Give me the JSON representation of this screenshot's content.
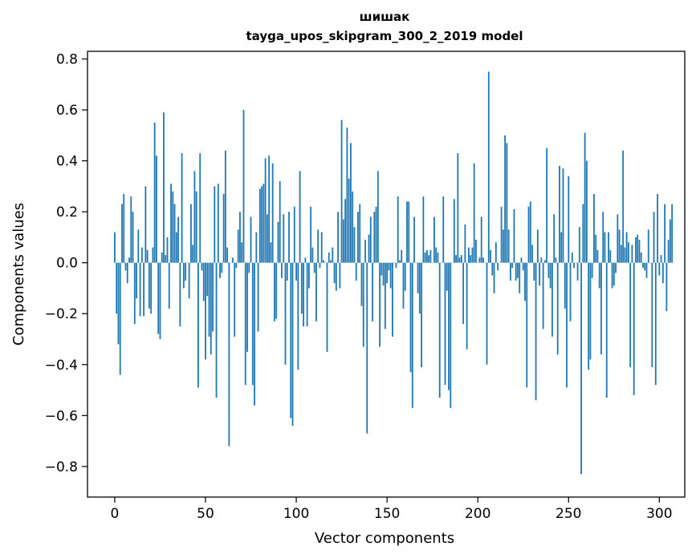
{
  "chart_data": {
    "type": "bar",
    "title_line1": "шишак",
    "title_line2": "tayga_upos_skipgram_300_2_2019 model",
    "xlabel": "Vector components",
    "ylabel": "Components values",
    "xlim": [
      -15,
      314
    ],
    "ylim": [
      -0.92,
      0.83
    ],
    "x_ticks": [
      0,
      50,
      100,
      150,
      200,
      250,
      300
    ],
    "y_ticks": [
      -0.8,
      -0.6,
      -0.4,
      -0.2,
      0.0,
      0.2,
      0.4,
      0.6,
      0.8
    ],
    "x_tick_labels": [
      "0",
      "50",
      "100",
      "150",
      "200",
      "250",
      "300"
    ],
    "y_tick_labels": [
      "−0.8",
      "−0.6",
      "−0.4",
      "−0.2",
      "0.0",
      "0.2",
      "0.4",
      "0.6",
      "0.8"
    ],
    "bar_color": "#1f77b4",
    "grid": false,
    "values": [
      0.12,
      -0.2,
      -0.32,
      -0.44,
      0.23,
      0.27,
      -0.03,
      -0.08,
      0.02,
      0.26,
      0.2,
      -0.24,
      -0.14,
      0.13,
      -0.21,
      0.06,
      -0.21,
      0.3,
      0.05,
      -0.18,
      -0.2,
      0.06,
      0.55,
      0.42,
      -0.28,
      -0.3,
      0.04,
      0.59,
      0.03,
      0.1,
      -0.18,
      0.31,
      0.28,
      0.23,
      0.12,
      0.18,
      -0.25,
      0.43,
      -0.1,
      -0.07,
      0.0,
      -0.14,
      0.23,
      0.07,
      0.36,
      0.28,
      -0.49,
      0.43,
      -0.03,
      -0.15,
      -0.38,
      -0.13,
      -0.29,
      -0.36,
      -0.27,
      0.3,
      -0.53,
      0.31,
      -0.06,
      -0.04,
      0.27,
      0.44,
      0.06,
      -0.72,
      0.0,
      0.02,
      -0.29,
      -0.02,
      0.13,
      0.2,
      0.08,
      0.6,
      -0.48,
      -0.35,
      -0.04,
      0.18,
      -0.48,
      -0.56,
      0.12,
      -0.27,
      0.29,
      0.3,
      0.31,
      0.41,
      0.19,
      0.42,
      0.08,
      0.39,
      -0.23,
      -0.22,
      0.16,
      0.32,
      -0.06,
      0.19,
      -0.4,
      -0.07,
      0.2,
      -0.61,
      -0.64,
      0.22,
      -0.07,
      -0.42,
      0.36,
      -0.2,
      -0.25,
      0.02,
      -0.25,
      -0.1,
      0.22,
      0.06,
      -0.04,
      -0.23,
      0.13,
      -0.02,
      0.12,
      0.01,
      0.0,
      -0.35,
      0.04,
      0.01,
      0.06,
      -0.08,
      -0.11,
      0.2,
      -0.1,
      0.56,
      0.17,
      0.25,
      0.53,
      0.33,
      0.47,
      0.28,
      0.14,
      -0.07,
      0.2,
      0.23,
      -0.17,
      -0.33,
      0.09,
      -0.67,
      0.11,
      0.18,
      -0.23,
      0.2,
      0.22,
      0.36,
      -0.33,
      -0.05,
      -0.09,
      -0.26,
      -0.08,
      -0.03,
      -0.1,
      -0.29,
      0.0,
      -0.02,
      0.26,
      0.01,
      0.05,
      -0.18,
      -0.11,
      0.24,
      0.24,
      -0.43,
      -0.57,
      0.18,
      0.0,
      -0.12,
      -0.2,
      -0.41,
      0.26,
      0.04,
      0.05,
      0.03,
      0.05,
      0.0,
      0.18,
      0.06,
      0.04,
      -0.53,
      0.0,
      0.26,
      -0.48,
      -0.11,
      -0.5,
      -0.57,
      0.0,
      0.25,
      0.03,
      0.43,
      0.02,
      0.03,
      -0.24,
      0.15,
      -0.34,
      0.06,
      0.03,
      0.06,
      0.39,
      0.09,
      0.0,
      0.02,
      0.18,
      0.02,
      0.0,
      -0.4,
      0.75,
      0.05,
      -0.05,
      -0.12,
      0.08,
      -0.03,
      0.0,
      0.22,
      0.13,
      0.5,
      0.47,
      0.13,
      -0.07,
      -0.02,
      0.21,
      -0.07,
      -0.06,
      -0.12,
      0.02,
      -0.03,
      -0.15,
      -0.49,
      0.22,
      0.24,
      0.07,
      -0.07,
      -0.54,
      0.13,
      -0.09,
      0.02,
      -0.26,
      0.01,
      0.45,
      -0.06,
      -0.1,
      -0.29,
      0.19,
      0.02,
      -0.36,
      0.38,
      0.12,
      0.37,
      -0.18,
      -0.49,
      0.34,
      -0.23,
      0.04,
      -0.02,
      0.0,
      -0.07,
      0.14,
      -0.83,
      0.23,
      0.51,
      0.4,
      -0.42,
      -0.38,
      -0.06,
      0.27,
      0.11,
      0.05,
      -0.1,
      -0.36,
      0.2,
      0.12,
      -0.53,
      0.12,
      0.05,
      -0.1,
      -0.09,
      -0.04,
      0.19,
      0.13,
      0.07,
      0.44,
      0.06,
      0.12,
      0.08,
      -0.41,
      0.07,
      -0.52,
      0.1,
      0.11,
      0.09,
      0.04,
      -0.02,
      -0.03,
      -0.06,
      0.13,
      0.0,
      -0.41,
      0.2,
      -0.48,
      0.27,
      -0.05,
      0.03,
      -0.08,
      0.23,
      -0.19,
      0.09,
      0.17,
      0.23
    ]
  }
}
